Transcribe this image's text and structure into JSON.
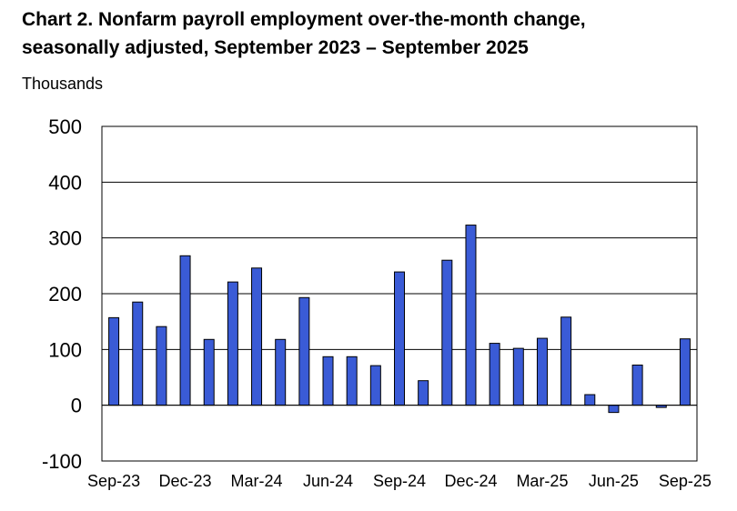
{
  "chart_data": {
    "type": "bar",
    "title_line1": "Chart 2. Nonfarm payroll employment over-the-month change,",
    "title_line2": "seasonally adjusted, September 2023 – September 2025",
    "ylabel": "Thousands",
    "xlabel": "",
    "ylim": [
      -100,
      500
    ],
    "yticks": [
      -100,
      0,
      100,
      200,
      300,
      400,
      500
    ],
    "xtick_labels": [
      "Sep-23",
      "Dec-23",
      "Mar-24",
      "Jun-24",
      "Sep-24",
      "Dec-24",
      "Mar-25",
      "Jun-25",
      "Sep-25"
    ],
    "categories": [
      "Sep-23",
      "Oct-23",
      "Nov-23",
      "Dec-23",
      "Jan-24",
      "Feb-24",
      "Mar-24",
      "Apr-24",
      "May-24",
      "Jun-24",
      "Jul-24",
      "Aug-24",
      "Sep-24",
      "Oct-24",
      "Nov-24",
      "Dec-24",
      "Jan-25",
      "Feb-25",
      "Mar-25",
      "Apr-25",
      "May-25",
      "Jun-25",
      "Jul-25",
      "Aug-25",
      "Sep-25"
    ],
    "values": [
      157,
      185,
      141,
      268,
      118,
      221,
      246,
      118,
      193,
      87,
      87,
      71,
      239,
      44,
      260,
      323,
      111,
      102,
      120,
      158,
      19,
      -13,
      72,
      -4,
      119
    ],
    "grid": true,
    "bar_color": "#3a5bd6"
  }
}
